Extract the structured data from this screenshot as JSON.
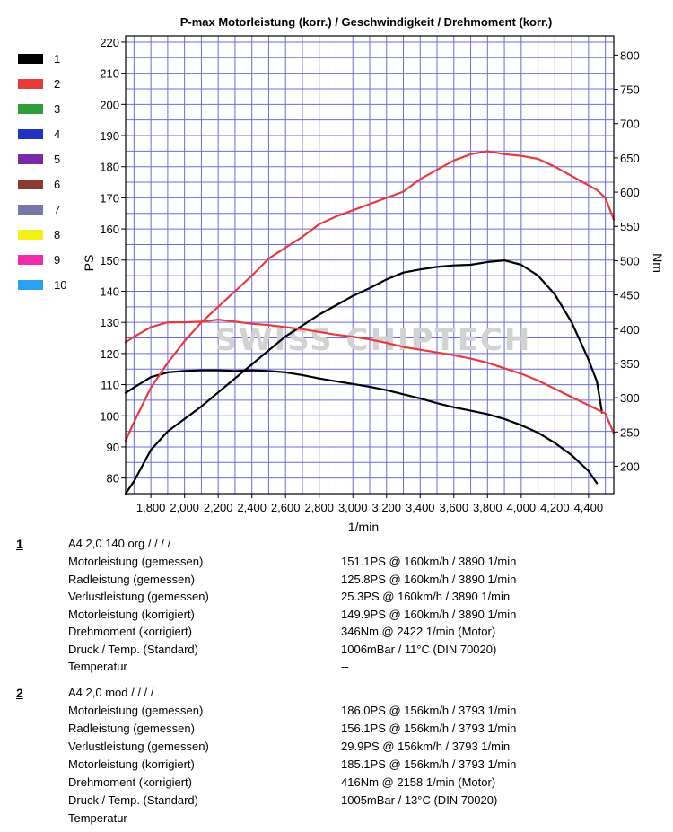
{
  "chart_data": {
    "type": "line",
    "title": "P-max Motorleistung (korr.) / Geschwindigkeit / Drehmoment (korr.)",
    "xlabel": "1/min",
    "ylabel_left": "PS",
    "ylabel_right": "Nm",
    "xlim": [
      1650,
      4550
    ],
    "ylim_left": [
      75,
      222
    ],
    "ylim_right": [
      160,
      828
    ],
    "x_ticks": [
      "1,800",
      "2,000",
      "2,200",
      "2,400",
      "2,600",
      "2,800",
      "3,000",
      "3,200",
      "3,400",
      "3,600",
      "3,800",
      "4,000",
      "4,200",
      "4,400"
    ],
    "x_tick_values": [
      1800,
      2000,
      2200,
      2400,
      2600,
      2800,
      3000,
      3200,
      3400,
      3600,
      3800,
      4000,
      4200,
      4400
    ],
    "y_left_ticks": [
      "80",
      "90",
      "100",
      "110",
      "120",
      "130",
      "140",
      "150",
      "160",
      "170",
      "180",
      "190",
      "200",
      "210",
      "220"
    ],
    "y_left_tick_values": [
      80,
      90,
      100,
      110,
      120,
      130,
      140,
      150,
      160,
      170,
      180,
      190,
      200,
      210,
      220
    ],
    "y_right_ticks": [
      "200",
      "250",
      "300",
      "350",
      "400",
      "450",
      "500",
      "550",
      "600",
      "650",
      "700",
      "750",
      "800"
    ],
    "y_right_tick_values": [
      200,
      250,
      300,
      350,
      400,
      450,
      500,
      550,
      600,
      650,
      700,
      750,
      800
    ],
    "grid": true,
    "legend_position": "left",
    "legend": [
      {
        "label": "1",
        "color": "#000000"
      },
      {
        "label": "2",
        "color": "#e83a3a"
      },
      {
        "label": "3",
        "color": "#2e9e3a"
      },
      {
        "label": "4",
        "color": "#2233c0"
      },
      {
        "label": "5",
        "color": "#7a2aa8"
      },
      {
        "label": "6",
        "color": "#8a3a30"
      },
      {
        "label": "7",
        "color": "#7777aa"
      },
      {
        "label": "8",
        "color": "#f5f015"
      },
      {
        "label": "9",
        "color": "#f02aa8"
      },
      {
        "label": "10",
        "color": "#2aa0f0"
      }
    ],
    "watermark": "SWISS CHIPTECH",
    "series": [
      {
        "name": "1",
        "measure": "power",
        "axis": "left",
        "color": "#000000",
        "x": [
          1650,
          1700,
          1800,
          1900,
          2000,
          2100,
          2200,
          2300,
          2400,
          2500,
          2600,
          2700,
          2800,
          2900,
          3000,
          3100,
          3200,
          3300,
          3400,
          3500,
          3600,
          3700,
          3800,
          3900,
          4000,
          4100,
          4200,
          4300,
          4400,
          4450,
          4480
        ],
        "y": [
          75,
          79,
          89,
          95,
          99,
          103,
          107.5,
          112,
          116.5,
          121,
          125.5,
          129,
          132.5,
          135.5,
          138.5,
          141,
          143.8,
          146,
          147,
          147.8,
          148.3,
          148.5,
          149.4,
          149.9,
          148.5,
          145,
          139,
          130,
          118,
          111,
          101
        ]
      },
      {
        "name": "1",
        "measure": "torque",
        "axis": "right",
        "color": "#000000",
        "x": [
          1650,
          1700,
          1800,
          1900,
          2000,
          2100,
          2200,
          2300,
          2400,
          2500,
          2600,
          2700,
          2800,
          2900,
          3000,
          3100,
          3200,
          3300,
          3400,
          3500,
          3600,
          3700,
          3800,
          3900,
          4000,
          4100,
          4200,
          4300,
          4400,
          4450
        ],
        "y": [
          307,
          315,
          330,
          337,
          339,
          340,
          340,
          339,
          340,
          339,
          337,
          333,
          328,
          324,
          320,
          316,
          311,
          305,
          299,
          292,
          286,
          281,
          276,
          269,
          260,
          249,
          234,
          216,
          193,
          175
        ]
      },
      {
        "name": "2",
        "measure": "power",
        "axis": "left",
        "color": "#e83a3a",
        "x": [
          1650,
          1700,
          1800,
          1900,
          2000,
          2100,
          2200,
          2300,
          2400,
          2500,
          2600,
          2700,
          2800,
          2900,
          3000,
          3100,
          3200,
          3300,
          3400,
          3500,
          3600,
          3700,
          3800,
          3900,
          4000,
          4100,
          4200,
          4300,
          4400,
          4450,
          4500,
          4550
        ],
        "y": [
          92,
          98,
          109,
          117,
          124,
          130,
          135,
          140,
          145,
          150.5,
          154,
          157.5,
          161.5,
          164,
          166,
          168,
          170,
          172,
          176,
          179,
          182,
          184,
          185,
          184,
          183.5,
          182.5,
          180,
          177,
          174,
          172.5,
          170,
          163
        ]
      },
      {
        "name": "2",
        "measure": "torque",
        "axis": "right",
        "color": "#e83a3a",
        "x": [
          1650,
          1700,
          1800,
          1900,
          2000,
          2100,
          2200,
          2300,
          2400,
          2500,
          2600,
          2700,
          2800,
          2900,
          3000,
          3100,
          3200,
          3300,
          3400,
          3500,
          3600,
          3700,
          3800,
          3900,
          4000,
          4100,
          4200,
          4300,
          4400,
          4500,
          4550
        ],
        "y": [
          381,
          389,
          403,
          410,
          410,
          411,
          414,
          411,
          408,
          406,
          403,
          400,
          396,
          392,
          389,
          385,
          380,
          374,
          370,
          366,
          362,
          357,
          351,
          343,
          335,
          325,
          313,
          301,
          289,
          277,
          248
        ]
      }
    ]
  },
  "runs": [
    {
      "number": "1",
      "name": "A4 2,0 140 org / / / /",
      "rows": [
        {
          "label": "Motorleistung (gemessen)",
          "value": "151.1PS @ 160km/h / 3890 1/min"
        },
        {
          "label": "Radleistung (gemessen)",
          "value": "125.8PS @ 160km/h / 3890 1/min"
        },
        {
          "label": "Verlustleistung (gemessen)",
          "value": "25.3PS @ 160km/h / 3890 1/min"
        },
        {
          "label": "Motorleistung (korrigiert)",
          "value": "149.9PS @ 160km/h / 3890 1/min"
        },
        {
          "label": "Drehmoment (korrigiert)",
          "value": "346Nm @ 2422 1/min (Motor)"
        },
        {
          "label": "Druck / Temp. (Standard)",
          "value": "1006mBar / 11°C  (DIN 70020)"
        },
        {
          "label": "Temperatur",
          "value": "--"
        }
      ]
    },
    {
      "number": "2",
      "name": "A4 2,0 mod / / / /",
      "rows": [
        {
          "label": "Motorleistung (gemessen)",
          "value": "186.0PS @ 156km/h / 3793 1/min"
        },
        {
          "label": "Radleistung (gemessen)",
          "value": "156.1PS @ 156km/h / 3793 1/min"
        },
        {
          "label": "Verlustleistung (gemessen)",
          "value": "29.9PS @ 156km/h / 3793 1/min"
        },
        {
          "label": "Motorleistung (korrigiert)",
          "value": "185.1PS @ 156km/h / 3793 1/min"
        },
        {
          "label": "Drehmoment (korrigiert)",
          "value": "416Nm @ 2158 1/min (Motor)"
        },
        {
          "label": "Druck / Temp. (Standard)",
          "value": "1005mBar / 13°C  (DIN 70020)"
        },
        {
          "label": "Temperatur",
          "value": "--"
        }
      ]
    }
  ]
}
